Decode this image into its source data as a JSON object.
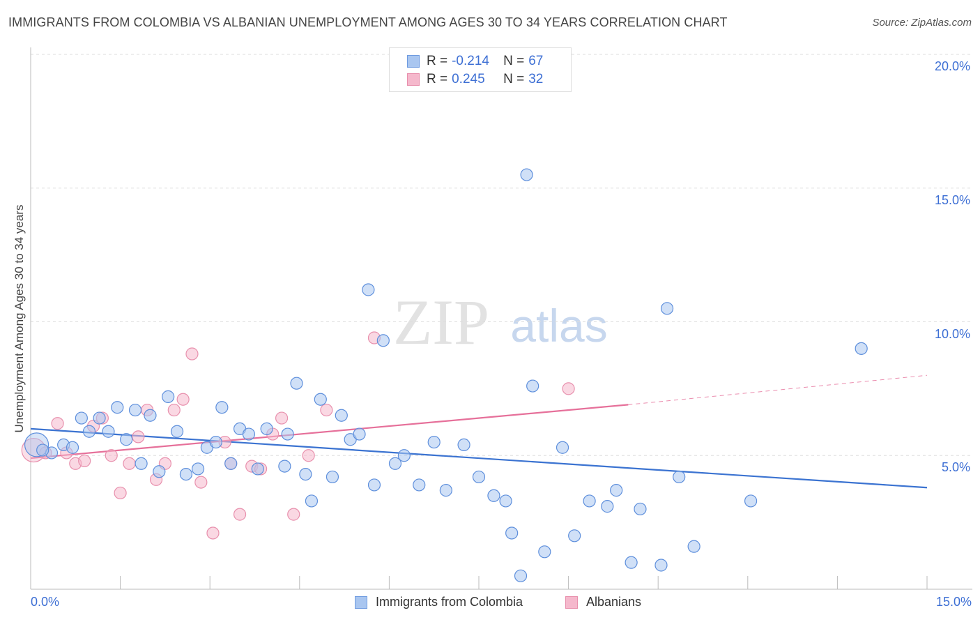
{
  "title": "IMMIGRANTS FROM COLOMBIA VS ALBANIAN UNEMPLOYMENT AMONG AGES 30 TO 34 YEARS CORRELATION CHART",
  "source": "Source: ZipAtlas.com",
  "watermark": {
    "zip": "ZIP",
    "atlas": "atlas"
  },
  "legend_top": [
    {
      "r_label": "R =",
      "r_value": "-0.214",
      "n_label": "N =",
      "n_value": "67"
    },
    {
      "r_label": "R =",
      "r_value": "0.245",
      "n_label": "N =",
      "n_value": "32"
    }
  ],
  "colors": {
    "blue": "#3b73d1",
    "blue_fill": "#a9c6f0",
    "pink": "#e6709a",
    "pink_fill": "#f5b8cc",
    "axis_text": "#3d6fd4"
  },
  "chart_data": {
    "type": "scatter",
    "title": "IMMIGRANTS FROM COLOMBIA VS ALBANIAN UNEMPLOYMENT AMONG AGES 30 TO 34 YEARS CORRELATION CHART",
    "xlabel": "",
    "ylabel": "Unemployment Among Ages 30 to 34 years",
    "xlim": [
      0,
      15
    ],
    "ylim": [
      0,
      20
    ],
    "x_tick_labels": [
      "0.0%",
      "15.0%"
    ],
    "y_tick_values": [
      5,
      10,
      15,
      20
    ],
    "y_tick_labels": [
      "5.0%",
      "10.0%",
      "15.0%",
      "20.0%"
    ],
    "legend_position": "bottom",
    "series": [
      {
        "name": "Immigrants from Colombia",
        "color": "#3b73d1",
        "trend": {
          "x": [
            0,
            15
          ],
          "y": [
            6.0,
            3.8
          ]
        },
        "points": [
          {
            "x": 0.1,
            "y": 5.4,
            "big": true
          },
          {
            "x": 0.35,
            "y": 5.1
          },
          {
            "x": 0.55,
            "y": 5.4
          },
          {
            "x": 0.7,
            "y": 5.3
          },
          {
            "x": 0.85,
            "y": 6.4
          },
          {
            "x": 0.98,
            "y": 5.9
          },
          {
            "x": 1.15,
            "y": 6.4
          },
          {
            "x": 1.3,
            "y": 5.9
          },
          {
            "x": 1.45,
            "y": 6.8
          },
          {
            "x": 1.6,
            "y": 5.6
          },
          {
            "x": 1.75,
            "y": 6.7
          },
          {
            "x": 1.85,
            "y": 4.7
          },
          {
            "x": 2.0,
            "y": 6.5
          },
          {
            "x": 2.15,
            "y": 4.4
          },
          {
            "x": 2.3,
            "y": 7.2
          },
          {
            "x": 2.45,
            "y": 5.9
          },
          {
            "x": 2.6,
            "y": 4.3
          },
          {
            "x": 2.8,
            "y": 4.5
          },
          {
            "x": 2.95,
            "y": 5.3
          },
          {
            "x": 3.1,
            "y": 5.5
          },
          {
            "x": 3.2,
            "y": 6.8
          },
          {
            "x": 3.35,
            "y": 4.7
          },
          {
            "x": 3.5,
            "y": 6.0
          },
          {
            "x": 3.65,
            "y": 5.8
          },
          {
            "x": 3.8,
            "y": 4.5
          },
          {
            "x": 3.95,
            "y": 6.0
          },
          {
            "x": 4.25,
            "y": 4.6
          },
          {
            "x": 4.3,
            "y": 5.8
          },
          {
            "x": 4.45,
            "y": 7.7
          },
          {
            "x": 4.6,
            "y": 4.3
          },
          {
            "x": 4.7,
            "y": 3.3
          },
          {
            "x": 4.85,
            "y": 7.1
          },
          {
            "x": 5.05,
            "y": 4.2
          },
          {
            "x": 5.2,
            "y": 6.5
          },
          {
            "x": 5.35,
            "y": 5.6
          },
          {
            "x": 5.5,
            "y": 5.8
          },
          {
            "x": 5.65,
            "y": 11.2
          },
          {
            "x": 5.75,
            "y": 3.9
          },
          {
            "x": 5.9,
            "y": 9.3
          },
          {
            "x": 6.1,
            "y": 4.7
          },
          {
            "x": 6.25,
            "y": 5.0
          },
          {
            "x": 6.5,
            "y": 3.9
          },
          {
            "x": 6.75,
            "y": 5.5
          },
          {
            "x": 6.95,
            "y": 3.7
          },
          {
            "x": 7.25,
            "y": 5.4
          },
          {
            "x": 7.5,
            "y": 4.2
          },
          {
            "x": 7.75,
            "y": 3.5
          },
          {
            "x": 7.95,
            "y": 3.3
          },
          {
            "x": 8.05,
            "y": 2.1
          },
          {
            "x": 8.2,
            "y": 0.5
          },
          {
            "x": 8.3,
            "y": 15.5
          },
          {
            "x": 8.4,
            "y": 7.6
          },
          {
            "x": 8.6,
            "y": 1.4
          },
          {
            "x": 8.9,
            "y": 5.3
          },
          {
            "x": 9.1,
            "y": 2.0
          },
          {
            "x": 9.35,
            "y": 3.3
          },
          {
            "x": 9.65,
            "y": 3.1
          },
          {
            "x": 9.8,
            "y": 3.7
          },
          {
            "x": 10.05,
            "y": 1.0
          },
          {
            "x": 10.2,
            "y": 3.0
          },
          {
            "x": 10.55,
            "y": 0.9
          },
          {
            "x": 10.65,
            "y": 10.5
          },
          {
            "x": 10.85,
            "y": 4.2
          },
          {
            "x": 11.1,
            "y": 1.6
          },
          {
            "x": 12.05,
            "y": 3.3
          },
          {
            "x": 13.9,
            "y": 9.0
          },
          {
            "x": 0.2,
            "y": 5.2
          }
        ]
      },
      {
        "name": "Albanians",
        "color": "#e6709a",
        "trend": {
          "x": [
            0,
            10.0,
            15
          ],
          "y": [
            4.9,
            6.9,
            8.0
          ]
        },
        "points": [
          {
            "x": 0.05,
            "y": 5.2,
            "big": true
          },
          {
            "x": 0.25,
            "y": 5.1
          },
          {
            "x": 0.45,
            "y": 6.2
          },
          {
            "x": 0.6,
            "y": 5.1
          },
          {
            "x": 0.75,
            "y": 4.7
          },
          {
            "x": 0.9,
            "y": 4.8
          },
          {
            "x": 1.05,
            "y": 6.1
          },
          {
            "x": 1.2,
            "y": 6.4
          },
          {
            "x": 1.35,
            "y": 5.0
          },
          {
            "x": 1.5,
            "y": 3.6
          },
          {
            "x": 1.65,
            "y": 4.7
          },
          {
            "x": 1.8,
            "y": 5.7
          },
          {
            "x": 1.95,
            "y": 6.7
          },
          {
            "x": 2.1,
            "y": 4.1
          },
          {
            "x": 2.25,
            "y": 4.7
          },
          {
            "x": 2.4,
            "y": 6.7
          },
          {
            "x": 2.55,
            "y": 7.1
          },
          {
            "x": 2.7,
            "y": 8.8
          },
          {
            "x": 2.85,
            "y": 4.0
          },
          {
            "x": 3.05,
            "y": 2.1
          },
          {
            "x": 3.25,
            "y": 5.5
          },
          {
            "x": 3.35,
            "y": 4.7
          },
          {
            "x": 3.5,
            "y": 2.8
          },
          {
            "x": 3.7,
            "y": 4.6
          },
          {
            "x": 3.85,
            "y": 4.5
          },
          {
            "x": 4.05,
            "y": 5.8
          },
          {
            "x": 4.2,
            "y": 6.4
          },
          {
            "x": 4.4,
            "y": 2.8
          },
          {
            "x": 4.65,
            "y": 5.0
          },
          {
            "x": 4.95,
            "y": 6.7
          },
          {
            "x": 5.75,
            "y": 9.4
          },
          {
            "x": 9.0,
            "y": 7.5
          }
        ]
      }
    ]
  },
  "legend_bottom": [
    "Immigrants from Colombia",
    "Albanians"
  ]
}
